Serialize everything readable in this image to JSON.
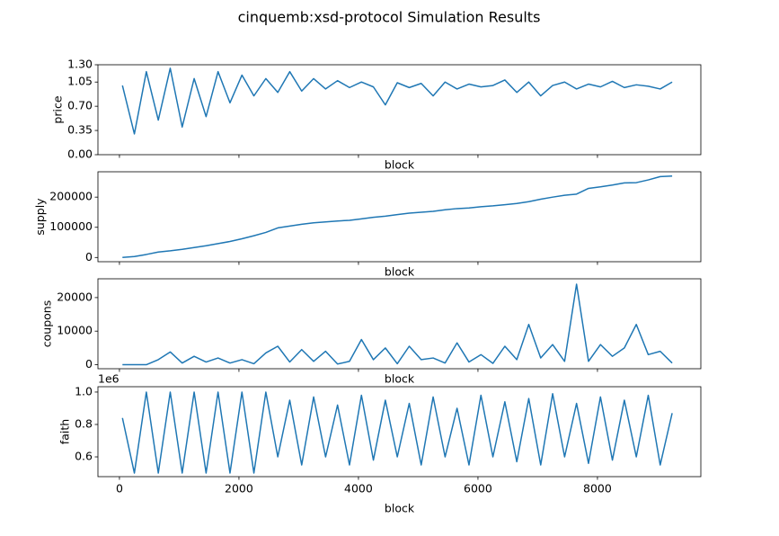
{
  "title": "cinquemb:xsd-protocol Simulation Results",
  "chart_data": [
    {
      "type": "line",
      "ylabel": "price",
      "xlabel": "block",
      "color": "#1f77b4",
      "show_xtick_labels": false,
      "xlim": [
        -360,
        9730
      ],
      "xticks": [
        0,
        2000,
        4000,
        6000,
        8000
      ],
      "ylim": [
        0,
        1.3
      ],
      "yticks": [
        {
          "value": 0,
          "label": "0.00"
        },
        {
          "value": 0.35,
          "label": "0.35"
        },
        {
          "value": 0.7,
          "label": "0.70"
        },
        {
          "value": 1.05,
          "label": "1.05"
        },
        {
          "value": 1.3,
          "label": "1.30"
        }
      ],
      "x": [
        50,
        250,
        450,
        650,
        850,
        1050,
        1250,
        1450,
        1650,
        1850,
        2050,
        2250,
        2450,
        2650,
        2850,
        3050,
        3250,
        3450,
        3650,
        3850,
        4050,
        4250,
        4450,
        4650,
        4850,
        5050,
        5250,
        5450,
        5650,
        5850,
        6050,
        6250,
        6450,
        6650,
        6850,
        7050,
        7250,
        7450,
        7650,
        7850,
        8050,
        8250,
        8450,
        8650,
        8850,
        9050,
        9250
      ],
      "values": [
        1.0,
        0.3,
        1.2,
        0.5,
        1.25,
        0.4,
        1.1,
        0.55,
        1.2,
        0.75,
        1.15,
        0.85,
        1.1,
        0.9,
        1.2,
        0.92,
        1.1,
        0.95,
        1.07,
        0.97,
        1.05,
        0.98,
        0.72,
        1.04,
        0.97,
        1.03,
        0.85,
        1.05,
        0.95,
        1.02,
        0.98,
        1.0,
        1.08,
        0.9,
        1.05,
        0.85,
        1.0,
        1.05,
        0.95,
        1.02,
        0.98,
        1.06,
        0.97,
        1.01,
        0.99,
        0.95,
        1.05
      ]
    },
    {
      "type": "line",
      "ylabel": "supply",
      "xlabel": "block",
      "color": "#1f77b4",
      "show_xtick_labels": false,
      "xlim": [
        -360,
        9730
      ],
      "xticks": [
        0,
        2000,
        4000,
        6000,
        8000
      ],
      "ylim": [
        -14000,
        284000
      ],
      "yticks": [
        0,
        100000,
        200000
      ],
      "x": [
        50,
        250,
        450,
        650,
        850,
        1050,
        1250,
        1450,
        1650,
        1850,
        2050,
        2250,
        2450,
        2650,
        2850,
        3050,
        3250,
        3450,
        3650,
        3850,
        4050,
        4250,
        4450,
        4650,
        4850,
        5050,
        5250,
        5450,
        5650,
        5850,
        6050,
        6250,
        6450,
        6650,
        6850,
        7050,
        7250,
        7450,
        7650,
        7850,
        8050,
        8250,
        8450,
        8650,
        8850,
        9050,
        9250
      ],
      "values": [
        0,
        3000,
        10000,
        18000,
        22000,
        27000,
        33000,
        39000,
        46000,
        53000,
        62000,
        72000,
        83000,
        98000,
        104000,
        110000,
        115000,
        118000,
        121000,
        123000,
        128000,
        133000,
        137000,
        142000,
        147000,
        150000,
        153000,
        158000,
        162000,
        164000,
        168000,
        171000,
        175000,
        179000,
        185000,
        193000,
        200000,
        206000,
        210000,
        229000,
        234000,
        240000,
        247000,
        248000,
        257000,
        268000,
        270000
      ]
    },
    {
      "type": "line",
      "ylabel": "coupons",
      "xlabel": "block",
      "color": "#1f77b4",
      "show_xtick_labels": false,
      "xlim": [
        -360,
        9730
      ],
      "xticks": [
        0,
        2000,
        4000,
        6000,
        8000
      ],
      "ylim": [
        -1200,
        25600
      ],
      "yticks": [
        0,
        10000,
        20000
      ],
      "x": [
        50,
        250,
        450,
        650,
        850,
        1050,
        1250,
        1450,
        1650,
        1850,
        2050,
        2250,
        2450,
        2650,
        2850,
        3050,
        3250,
        3450,
        3650,
        3850,
        4050,
        4250,
        4450,
        4650,
        4850,
        5050,
        5250,
        5450,
        5650,
        5850,
        6050,
        6250,
        6450,
        6650,
        6850,
        7050,
        7250,
        7450,
        7650,
        7850,
        8050,
        8250,
        8450,
        8650,
        8850,
        9050,
        9250
      ],
      "values": [
        0,
        0,
        0,
        1500,
        3800,
        500,
        2500,
        800,
        2000,
        500,
        1500,
        300,
        3500,
        5500,
        800,
        4500,
        1000,
        4000,
        200,
        1000,
        7500,
        1500,
        5000,
        300,
        5500,
        1500,
        2000,
        500,
        6500,
        800,
        3000,
        400,
        5500,
        1500,
        12000,
        2000,
        6000,
        1000,
        24000,
        1000,
        6000,
        2500,
        5000,
        12000,
        3000,
        4000,
        500
      ]
    },
    {
      "type": "line",
      "ylabel": "faith",
      "xlabel": "block",
      "color": "#1f77b4",
      "show_xtick_labels": true,
      "y_offset_label": "1e6",
      "xlim": [
        -360,
        9730
      ],
      "xticks": [
        0,
        2000,
        4000,
        6000,
        8000
      ],
      "ylim": [
        0.478,
        1.033
      ],
      "yticks": [
        0.6,
        0.8,
        {
          "value": 1.0,
          "label": "1.0"
        }
      ],
      "x": [
        50,
        250,
        450,
        650,
        850,
        1050,
        1250,
        1450,
        1650,
        1850,
        2050,
        2250,
        2450,
        2650,
        2850,
        3050,
        3250,
        3450,
        3650,
        3850,
        4050,
        4250,
        4450,
        4650,
        4850,
        5050,
        5250,
        5450,
        5650,
        5850,
        6050,
        6250,
        6450,
        6650,
        6850,
        7050,
        7250,
        7450,
        7650,
        7850,
        8050,
        8250,
        8450,
        8650,
        8850,
        9050,
        9250
      ],
      "values": [
        0.84,
        0.5,
        1.0,
        0.5,
        1.0,
        0.5,
        1.0,
        0.5,
        1.0,
        0.5,
        1.0,
        0.5,
        1.0,
        0.6,
        0.95,
        0.55,
        0.97,
        0.6,
        0.92,
        0.55,
        0.98,
        0.58,
        0.95,
        0.6,
        0.93,
        0.55,
        0.97,
        0.6,
        0.9,
        0.55,
        0.98,
        0.6,
        0.94,
        0.57,
        0.96,
        0.55,
        0.99,
        0.6,
        0.93,
        0.56,
        0.97,
        0.58,
        0.95,
        0.6,
        0.98,
        0.55,
        0.87
      ]
    }
  ]
}
